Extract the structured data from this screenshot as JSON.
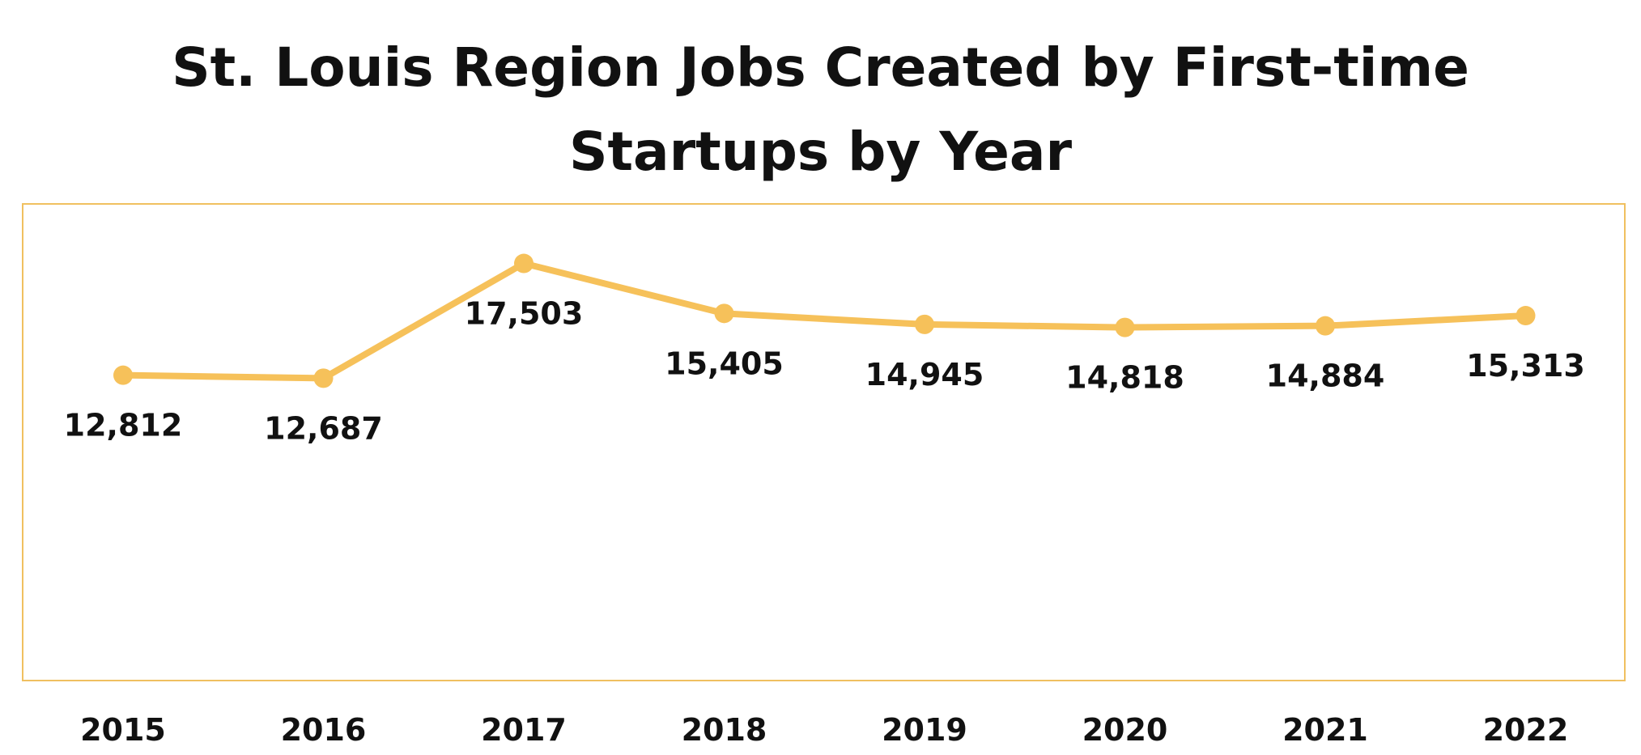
{
  "chart_data": {
    "type": "line",
    "title_lines": [
      "St. Louis Region Jobs Created by First-time",
      "Startups by Year"
    ],
    "categories": [
      "2015",
      "2016",
      "2017",
      "2018",
      "2019",
      "2020",
      "2021",
      "2022"
    ],
    "series": [
      {
        "values": [
          12812,
          12687,
          17503,
          15405,
          14945,
          14818,
          14884,
          15313
        ],
        "value_labels": [
          "12,812",
          "12,687",
          "17,503",
          "15,405",
          "14,945",
          "14,818",
          "14,884",
          "15,313"
        ],
        "color": "#F6C15A"
      }
    ],
    "ylim": [
      0,
      20000
    ],
    "grid": false,
    "legend": false,
    "frame_color": "#F0C060"
  }
}
